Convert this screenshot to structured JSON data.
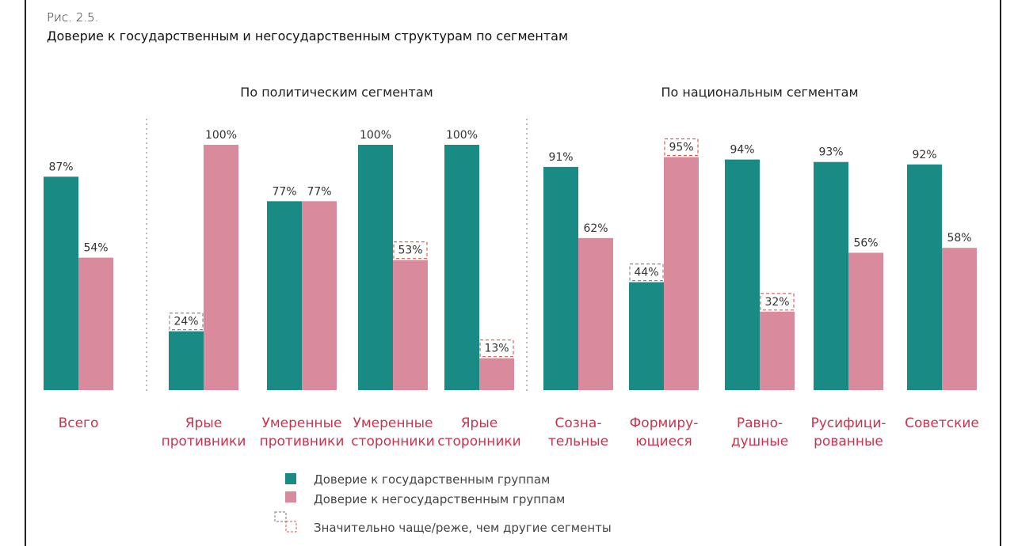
{
  "figure": {
    "label": "Рис. 2.5.",
    "title": "Доверие к государственным и негосударственным структурам по сегментам"
  },
  "group_titles": [
    "По политическим сегментам",
    "По национальным сегментам"
  ],
  "legend": {
    "state": "Доверие к государственным группам",
    "nonstate": "Доверие к негосударственным группам",
    "highlight": "Значительно чаще/реже, чем другие сегменты"
  },
  "colors": {
    "state": "#1a8a84",
    "nonstate": "#d98a9c",
    "category_text": "#c8344e",
    "highlight_state": "#888888",
    "highlight_nonstate": "#e05a4a"
  },
  "chart_data": {
    "type": "bar",
    "categories": [
      [
        "Всего"
      ],
      [
        "Ярые",
        "противники"
      ],
      [
        "Умеренные",
        "противники"
      ],
      [
        "Умеренные",
        "сторонники"
      ],
      [
        "Ярые",
        "сторонники"
      ],
      [
        "Созна-",
        "тельные"
      ],
      [
        "Формиру-",
        "ющиеся"
      ],
      [
        "Равно-",
        "душные"
      ],
      [
        "Русифици-",
        "рованные"
      ],
      [
        "Советские"
      ]
    ],
    "series": [
      {
        "name": "Доверие к государственным группам",
        "values": [
          87,
          24,
          77,
          100,
          100,
          91,
          44,
          94,
          93,
          92
        ]
      },
      {
        "name": "Доверие к негосударственным группам",
        "values": [
          54,
          100,
          77,
          53,
          13,
          62,
          95,
          32,
          56,
          58
        ]
      }
    ],
    "value_labels": [
      [
        "87%",
        "24%",
        "77%",
        "100%",
        "100%",
        "91%",
        "44%",
        "94%",
        "93%",
        "92%"
      ],
      [
        "54%",
        "100%",
        "77%",
        "53%",
        "13%",
        "62%",
        "95%",
        "32%",
        "56%",
        "58%"
      ]
    ],
    "highlighted": [
      [
        false,
        true,
        false,
        false,
        false,
        false,
        true,
        false,
        false,
        false
      ],
      [
        false,
        false,
        false,
        true,
        true,
        false,
        true,
        true,
        false,
        false
      ]
    ],
    "ylim": [
      0,
      100
    ]
  }
}
